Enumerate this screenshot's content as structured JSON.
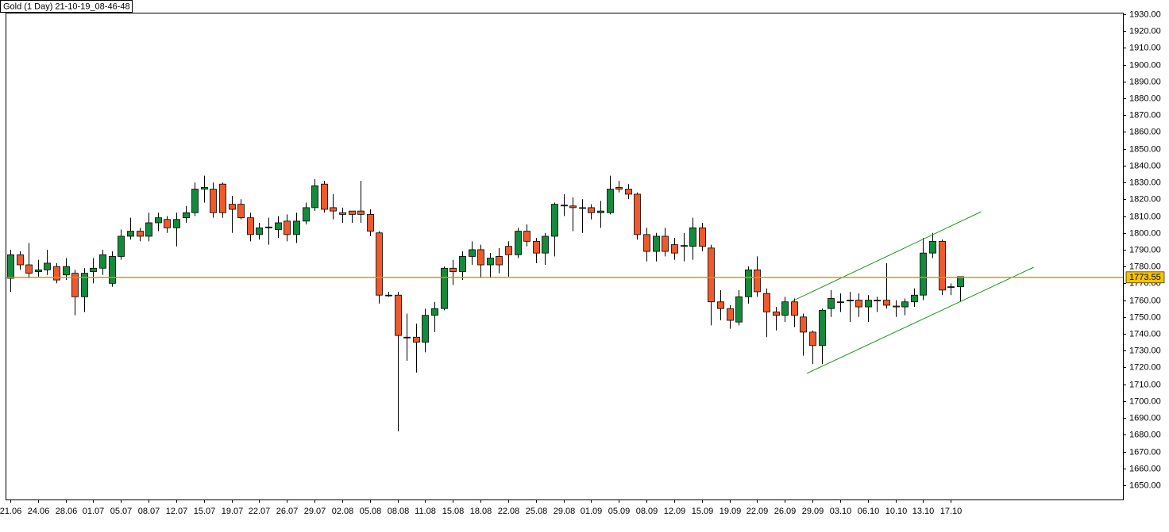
{
  "chart_data": {
    "type": "candlestick",
    "title": "Gold (1 Day) 21-10-19_08-46-48",
    "categories": [
      "21.06",
      null,
      null,
      "24.06",
      null,
      null,
      "28.06",
      null,
      null,
      "01.07",
      null,
      null,
      "05.07",
      null,
      null,
      "08.07",
      null,
      null,
      "12.07",
      null,
      null,
      "15.07",
      null,
      null,
      "19.07",
      null,
      null,
      "22.07",
      null,
      null,
      "26.07",
      null,
      null,
      "29.07",
      null,
      null,
      "02.08",
      null,
      null,
      "05.08",
      null,
      null,
      "08.08",
      null,
      null,
      "11.08",
      null,
      null,
      "15.08",
      null,
      null,
      "18.08",
      null,
      null,
      "22.08",
      null,
      null,
      "25.08",
      null,
      null,
      "29.08",
      null,
      null,
      "01.09",
      null,
      null,
      "05.09",
      null,
      null,
      "08.09",
      null,
      null,
      "12.09",
      null,
      null,
      "15.09",
      null,
      null,
      "19.09",
      null,
      null,
      "22.09",
      null,
      null,
      "26.09",
      null,
      null,
      "29.09",
      null,
      null,
      "03.10",
      null,
      null,
      "06.10",
      null,
      null,
      "10.10",
      null,
      null,
      "13.10",
      null,
      null,
      "17.10",
      null
    ],
    "open": [
      1773,
      1787,
      1781,
      1777,
      1778,
      1780,
      1775,
      1776,
      1762,
      1777,
      1779,
      1770,
      1786,
      1798,
      1801,
      1798,
      1806,
      1808,
      1803,
      1809,
      1812,
      1826,
      1826,
      1829,
      1817,
      1817,
      1809,
      1799,
      1803,
      1802,
      1807,
      1799,
      1807,
      1815,
      1829,
      1815,
      1812,
      1813,
      1813,
      1811,
      1800,
      1763,
      1763,
      1738,
      1738,
      1735,
      1751,
      1755,
      1779,
      1777,
      1786,
      1790,
      1781,
      1786,
      1792,
      1787,
      1801,
      1795,
      1788,
      1798,
      1816,
      1816,
      1815,
      1815,
      1812,
      1812,
      1827,
      1826,
      1823,
      1799,
      1789,
      1798,
      1793,
      1792,
      1792,
      1803,
      1791,
      1759,
      1755,
      1747,
      1762,
      1778,
      1764,
      1753,
      1751,
      1759,
      1750,
      1741,
      1733,
      1755,
      1759,
      1760,
      1760,
      1756,
      1760,
      1760,
      1756.5,
      1756,
      1759,
      1763,
      1788,
      1795,
      1768,
      1768
    ],
    "high": [
      1790,
      1789,
      1794,
      1784,
      1790,
      1782,
      1785,
      1778,
      1779,
      1785,
      1790,
      1789,
      1802,
      1809,
      1803,
      1812,
      1812,
      1810,
      1812,
      1816,
      1830,
      1834,
      1830,
      1830,
      1822,
      1820,
      1812,
      1806,
      1809,
      1810,
      1811,
      1812,
      1818,
      1832,
      1831,
      1823,
      1815,
      1813,
      1831,
      1814,
      1801,
      1765,
      1765,
      1752,
      1746,
      1755,
      1759,
      1780,
      1784,
      1789,
      1795,
      1793,
      1788,
      1791,
      1795,
      1803,
      1805,
      1797,
      1800,
      1818,
      1823,
      1821,
      1820,
      1817,
      1819,
      1834,
      1831,
      1829,
      1824,
      1803,
      1800,
      1803,
      1797,
      1800,
      1809,
      1806,
      1793,
      1766,
      1757,
      1766,
      1780,
      1786,
      1767,
      1756,
      1762,
      1761,
      1752,
      1742,
      1755,
      1766,
      1764,
      1765,
      1764,
      1763,
      1762,
      1782,
      1760,
      1761,
      1767,
      1797,
      1800,
      1796,
      1770,
      1774
    ],
    "low": [
      1765,
      1778,
      1773,
      1774,
      1775,
      1770,
      1772,
      1751,
      1753,
      1770,
      1775,
      1768,
      1784,
      1796,
      1795,
      1795,
      1801,
      1800,
      1792,
      1806,
      1810,
      1818,
      1809,
      1809,
      1800,
      1808,
      1795,
      1796,
      1793,
      1797,
      1795,
      1794,
      1805,
      1813,
      1812,
      1808,
      1806,
      1806,
      1806,
      1798,
      1758,
      1762,
      1682,
      1724,
      1717,
      1729,
      1741,
      1754,
      1769,
      1772,
      1781,
      1773,
      1773,
      1776,
      1774,
      1785,
      1792,
      1782,
      1781,
      1786,
      1810,
      1801,
      1800,
      1808,
      1803,
      1811,
      1824,
      1820,
      1796,
      1783,
      1783,
      1786,
      1784,
      1783,
      1784,
      1789,
      1745,
      1748,
      1743,
      1745,
      1758,
      1762,
      1738,
      1742,
      1747,
      1744,
      1727,
      1722,
      1722,
      1750,
      1753,
      1747,
      1750,
      1747,
      1753,
      1755,
      1750,
      1751,
      1756,
      1760,
      1785,
      1763,
      1763,
      1759
    ],
    "close": [
      1787,
      1781,
      1776,
      1778,
      1782,
      1772,
      1780,
      1762,
      1776,
      1779,
      1787,
      1786,
      1798,
      1801,
      1798,
      1806,
      1809,
      1803,
      1808,
      1812,
      1826,
      1827,
      1812,
      1812,
      1814,
      1809,
      1799,
      1803,
      1803.5,
      1806,
      1799,
      1807,
      1815,
      1828,
      1814,
      1813,
      1811,
      1811,
      1811,
      1801,
      1763,
      1763,
      1739,
      1738,
      1735,
      1751,
      1755,
      1779,
      1777,
      1786,
      1790,
      1781,
      1785,
      1781,
      1787,
      1801,
      1795,
      1788,
      1798,
      1817,
      1816.5,
      1815,
      1815,
      1812,
      1813,
      1826,
      1826,
      1823,
      1799,
      1789,
      1798,
      1789,
      1788,
      1792.5,
      1803,
      1792,
      1759,
      1755,
      1748,
      1762,
      1778,
      1765,
      1753,
      1751,
      1759,
      1751,
      1741,
      1733,
      1754,
      1761,
      1759,
      1760,
      1756,
      1760,
      1759.5,
      1757,
      1756,
      1759,
      1763,
      1788,
      1795,
      1766,
      1768,
      1774
    ],
    "up_color": "#148a3c",
    "down_color": "#ee5a2c",
    "last_price": 1773.55,
    "last_price_color": "#d49a00",
    "trendlines": [
      {
        "x": [
          84.8,
          105.3
        ],
        "y": [
          1759.4,
          1812.6
        ],
        "color": "#1a9a1a"
      },
      {
        "x": [
          86.4,
          111.0
        ],
        "y": [
          1716.5,
          1779.6
        ],
        "color": "#1a9a1a"
      }
    ],
    "ylim": [
      1641.5,
      1930.9
    ],
    "yticks": [
      {
        "value": 1650,
        "label": "1650.00"
      },
      {
        "value": 1660,
        "label": "1660.00"
      },
      {
        "value": 1670,
        "label": "1670.00"
      },
      {
        "value": 1680,
        "label": "1680.00"
      },
      {
        "value": 1690,
        "label": "1690.00"
      },
      {
        "value": 1700,
        "label": "1700.00"
      },
      {
        "value": 1710,
        "label": "1710.00"
      },
      {
        "value": 1720,
        "label": "1720.00"
      },
      {
        "value": 1730,
        "label": "1730.00"
      },
      {
        "value": 1740,
        "label": "1740.00"
      },
      {
        "value": 1750,
        "label": "1750.00"
      },
      {
        "value": 1760,
        "label": "1760.00"
      },
      {
        "value": 1770,
        "label": "1770.00"
      },
      {
        "value": 1780,
        "label": "1780.00"
      },
      {
        "value": 1790,
        "label": "1790.00"
      },
      {
        "value": 1800,
        "label": "1800.00"
      },
      {
        "value": 1810,
        "label": "1810.00"
      },
      {
        "value": 1820,
        "label": "1820.00"
      },
      {
        "value": 1830,
        "label": "1830.00"
      },
      {
        "value": 1840,
        "label": "1840.00"
      },
      {
        "value": 1850,
        "label": "1850.00"
      },
      {
        "value": 1860,
        "label": "1860.00"
      },
      {
        "value": 1870,
        "label": "1870.00"
      },
      {
        "value": 1880,
        "label": "1880.00"
      },
      {
        "value": 1890,
        "label": "1890.00"
      },
      {
        "value": 1900,
        "label": "1900.00"
      },
      {
        "value": 1910,
        "label": "1910.00"
      },
      {
        "value": 1920,
        "label": "1920.00"
      },
      {
        "value": 1930,
        "label": "1930.00"
      }
    ]
  }
}
